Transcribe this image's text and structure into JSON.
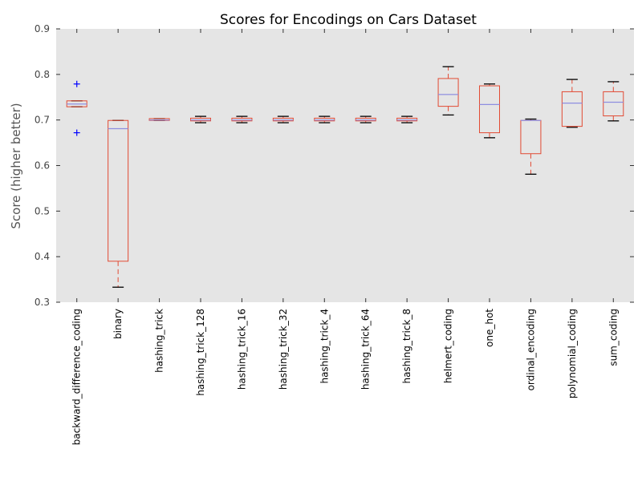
{
  "chart_data": {
    "type": "box",
    "title": "Scores for Encodings on Cars Dataset",
    "xlabel": "",
    "ylabel": "Score (higher better)",
    "ylim": [
      0.3,
      0.9
    ],
    "yticks": [
      0.3,
      0.4,
      0.5,
      0.6,
      0.7,
      0.8,
      0.9
    ],
    "ytick_labels": [
      "0.3",
      "0.4",
      "0.5",
      "0.6",
      "0.7",
      "0.8",
      "0.9"
    ],
    "categories": [
      "backward_difference_coding",
      "binary",
      "hashing_trick",
      "hashing_trick_128",
      "hashing_trick_16",
      "hashing_trick_32",
      "hashing_trick_4",
      "hashing_trick_64",
      "hashing_trick_8",
      "helmert_coding",
      "one_hot",
      "ordinal_encoding",
      "polynomial_coding",
      "sum_coding"
    ],
    "boxes": [
      {
        "whisker_low": 0.729,
        "q1": 0.729,
        "median": 0.735,
        "q3": 0.742,
        "whisker_high": 0.742,
        "fliers": [
          0.779,
          0.672
        ]
      },
      {
        "whisker_low": 0.333,
        "q1": 0.39,
        "median": 0.681,
        "q3": 0.699,
        "whisker_high": 0.699,
        "fliers": []
      },
      {
        "whisker_low": 0.699,
        "q1": 0.699,
        "median": 0.7,
        "q3": 0.703,
        "whisker_high": 0.703,
        "fliers": []
      },
      {
        "whisker_low": 0.694,
        "q1": 0.698,
        "median": 0.7,
        "q3": 0.704,
        "whisker_high": 0.708,
        "fliers": []
      },
      {
        "whisker_low": 0.694,
        "q1": 0.698,
        "median": 0.7,
        "q3": 0.704,
        "whisker_high": 0.708,
        "fliers": []
      },
      {
        "whisker_low": 0.694,
        "q1": 0.698,
        "median": 0.7,
        "q3": 0.704,
        "whisker_high": 0.708,
        "fliers": []
      },
      {
        "whisker_low": 0.694,
        "q1": 0.698,
        "median": 0.7,
        "q3": 0.704,
        "whisker_high": 0.708,
        "fliers": []
      },
      {
        "whisker_low": 0.694,
        "q1": 0.698,
        "median": 0.7,
        "q3": 0.704,
        "whisker_high": 0.708,
        "fliers": []
      },
      {
        "whisker_low": 0.694,
        "q1": 0.698,
        "median": 0.7,
        "q3": 0.704,
        "whisker_high": 0.708,
        "fliers": []
      },
      {
        "whisker_low": 0.711,
        "q1": 0.73,
        "median": 0.756,
        "q3": 0.791,
        "whisker_high": 0.817,
        "fliers": []
      },
      {
        "whisker_low": 0.661,
        "q1": 0.672,
        "median": 0.734,
        "q3": 0.775,
        "whisker_high": 0.779,
        "fliers": []
      },
      {
        "whisker_low": 0.581,
        "q1": 0.626,
        "median": 0.699,
        "q3": 0.699,
        "whisker_high": 0.702,
        "fliers": []
      },
      {
        "whisker_low": 0.684,
        "q1": 0.686,
        "median": 0.737,
        "q3": 0.762,
        "whisker_high": 0.789,
        "fliers": []
      },
      {
        "whisker_low": 0.698,
        "q1": 0.709,
        "median": 0.739,
        "q3": 0.762,
        "whisker_high": 0.784,
        "fliers": []
      }
    ],
    "grid": false,
    "colors": {
      "plot_background": "#e5e5e5",
      "box": "#e24a33",
      "median": "#8e8ee0",
      "whisker_cap": "#000000",
      "flier": "#0000ff"
    }
  }
}
